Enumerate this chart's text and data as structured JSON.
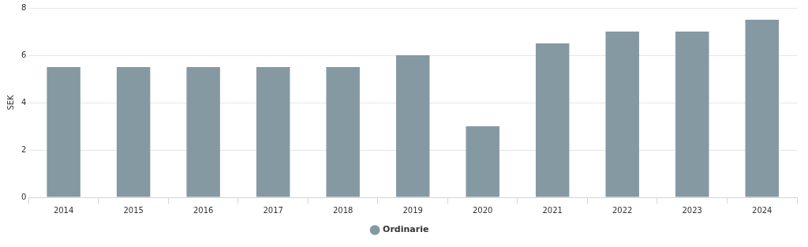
{
  "chart_data": {
    "type": "bar",
    "ylabel": "SEK",
    "categories": [
      "2014",
      "2015",
      "2016",
      "2017",
      "2018",
      "2019",
      "2020",
      "2021",
      "2022",
      "2023",
      "2024"
    ],
    "series": [
      {
        "name": "Ordinarie",
        "color": "#8599a3",
        "values": [
          5.5,
          5.5,
          5.5,
          5.5,
          5.5,
          6,
          3,
          6.5,
          7,
          7,
          7.5
        ]
      }
    ],
    "ylim": [
      0,
      8
    ],
    "yticks": [
      0,
      2,
      4,
      6,
      8
    ],
    "grid": "y",
    "legend": "bottom"
  }
}
